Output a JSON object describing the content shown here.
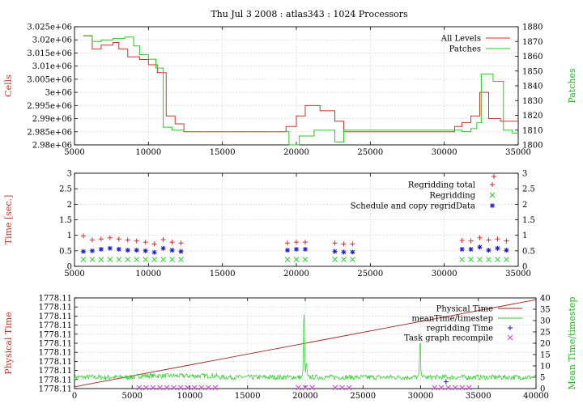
{
  "title": "Thu Jul 3 2008 : atlas343 : 1024 Processors",
  "colors": {
    "red": "#d03030",
    "green": "#22cc22",
    "blue": "#1a1acc",
    "magenta": "#cc44cc",
    "darkred": "#a02020"
  },
  "chart_data": [
    {
      "type": "line",
      "ylabel": "Cells",
      "y2label": "Patches",
      "xlim": [
        5000,
        35000
      ],
      "ylim": [
        2980000,
        3025000
      ],
      "y2lim": [
        1800,
        1880
      ],
      "xticks": [
        "5000",
        "10000",
        "15000",
        "20000",
        "25000",
        "30000",
        "35000"
      ],
      "xtick_values": [
        5000,
        10000,
        15000,
        20000,
        25000,
        30000,
        35000
      ],
      "yticks": [
        "2.98e+06",
        "2.985e+06",
        "2.99e+06",
        "2.995e+06",
        "3e+06",
        "3.005e+06",
        "3.01e+06",
        "3.015e+06",
        "3.02e+06",
        "3.025e+06"
      ],
      "ytick_values": [
        2980000,
        2985000,
        2990000,
        2995000,
        3000000,
        3005000,
        3010000,
        3015000,
        3020000,
        3025000
      ],
      "y2ticks": [
        "1800",
        "1810",
        "1820",
        "1830",
        "1840",
        "1850",
        "1860",
        "1870",
        "1880"
      ],
      "y2tick_values": [
        1800,
        1810,
        1820,
        1830,
        1840,
        1850,
        1860,
        1870,
        1880
      ],
      "legend": "top-right",
      "series": [
        {
          "name": "All Levels",
          "axis": "left",
          "color": "#d03030",
          "x": [
            5600,
            6200,
            6800,
            7600,
            8000,
            8600,
            9400,
            10000,
            10600,
            11200,
            11800,
            12400,
            19300,
            20000,
            20600,
            21600,
            22600,
            23200,
            30700,
            31200,
            31800,
            32400,
            33000,
            33800,
            34600
          ],
          "y": [
            3021500,
            3016500,
            3018000,
            3019000,
            3016500,
            3013500,
            3012500,
            3010500,
            3007500,
            2991000,
            2988000,
            2985000,
            2987000,
            2991000,
            2995000,
            2993000,
            2989000,
            2985000,
            2987000,
            2988500,
            2991000,
            3000000,
            2990000,
            2989000,
            2989000
          ]
        },
        {
          "name": "Patches",
          "axis": "right",
          "color": "#22cc22",
          "x": [
            5600,
            6200,
            6800,
            7600,
            8400,
            9000,
            9400,
            10000,
            10500,
            11000,
            11600,
            12400,
            19500,
            20200,
            21200,
            22600,
            23200,
            31200,
            31800,
            32200,
            32500,
            33300,
            34000,
            34600
          ],
          "y": [
            1874,
            1870,
            1871,
            1872,
            1873,
            1867,
            1861,
            1858,
            1852,
            1812,
            1810,
            1809,
            1800,
            1806,
            1810,
            1802,
            1810,
            1809,
            1811,
            1815,
            1848,
            1843,
            1810,
            1808
          ]
        }
      ]
    },
    {
      "type": "scatter",
      "ylabel": "Time [sec.]",
      "xlim": [
        5000,
        35000
      ],
      "ylim": [
        0,
        3
      ],
      "y2lim": [
        0,
        3
      ],
      "xticks": [
        "5000",
        "10000",
        "15000",
        "20000",
        "25000",
        "30000",
        "35000"
      ],
      "xtick_values": [
        5000,
        10000,
        15000,
        20000,
        25000,
        30000,
        35000
      ],
      "yticks": [
        "0",
        "0.5",
        "1",
        "1.5",
        "2",
        "2.5",
        "3"
      ],
      "ytick_values": [
        0,
        0.5,
        1,
        1.5,
        2,
        2.5,
        3
      ],
      "y2ticks": [
        "0",
        "0.5",
        "1",
        "1.5",
        "2",
        "2.5",
        "3"
      ],
      "y2tick_values": [
        0,
        0.5,
        1,
        1.5,
        2,
        2.5,
        3
      ],
      "legend": "top-right",
      "x": [
        5600,
        6200,
        6800,
        7400,
        8000,
        8600,
        9200,
        9800,
        10400,
        11000,
        11600,
        12200,
        19400,
        20000,
        20600,
        22600,
        23200,
        23800,
        31200,
        31800,
        32400,
        33000,
        33600,
        34200
      ],
      "series": [
        {
          "name": "Regridding total",
          "marker": "+",
          "color": "#d03030",
          "values": [
            0.98,
            0.85,
            0.88,
            0.92,
            0.88,
            0.85,
            0.82,
            0.78,
            0.72,
            0.86,
            0.78,
            0.75,
            0.75,
            0.78,
            0.78,
            0.75,
            0.72,
            0.72,
            0.83,
            0.82,
            0.92,
            0.85,
            0.88,
            0.82
          ]
        },
        {
          "name": "Regridding",
          "marker": "x",
          "color": "#22cc22",
          "values": [
            0.22,
            0.22,
            0.22,
            0.22,
            0.22,
            0.22,
            0.22,
            0.22,
            0.22,
            0.22,
            0.22,
            0.22,
            0.22,
            0.22,
            0.22,
            0.22,
            0.22,
            0.22,
            0.22,
            0.22,
            0.22,
            0.22,
            0.22,
            0.22
          ]
        },
        {
          "name": "Schedule and copy regridData",
          "marker": "*",
          "color": "#1a1acc",
          "values": [
            0.48,
            0.5,
            0.55,
            0.58,
            0.55,
            0.52,
            0.52,
            0.5,
            0.45,
            0.58,
            0.52,
            0.48,
            0.52,
            0.55,
            0.55,
            0.48,
            0.46,
            0.46,
            0.55,
            0.55,
            0.62,
            0.52,
            0.58,
            0.52
          ]
        }
      ]
    },
    {
      "type": "line",
      "ylabel": "Physical Time",
      "y2label": "Mean Time/timestep",
      "xlim": [
        0,
        40000
      ],
      "y2lim": [
        0,
        40
      ],
      "xticks": [
        "0",
        "5000",
        "10000",
        "15000",
        "20000",
        "25000",
        "30000",
        "35000",
        "40000"
      ],
      "xtick_values": [
        0,
        5000,
        10000,
        15000,
        20000,
        25000,
        30000,
        35000,
        40000
      ],
      "yticks": [
        "1778.11",
        "1778.11",
        "1778.11",
        "1778.11",
        "1778.11",
        "1778.11",
        "1778.11",
        "1778.11",
        "1778.11",
        "1778.11",
        "1778.11"
      ],
      "y2ticks": [
        "0",
        "5",
        "10",
        "15",
        "20",
        "25",
        "30",
        "35",
        "40"
      ],
      "y2tick_values": [
        0,
        5,
        10,
        15,
        20,
        25,
        30,
        35,
        40
      ],
      "legend": "top-right",
      "physical_time": {
        "name": "Physical Time",
        "color": "#a02020",
        "x": [
          0,
          40000
        ],
        "y_frac": [
          0.02,
          0.98
        ]
      },
      "mean_time": {
        "name": "meanTime/timestep",
        "color": "#22cc22",
        "baseline": 5.0,
        "spikes": [
          {
            "x": 19900,
            "peak": 34
          },
          {
            "x": 20100,
            "peak": 14
          },
          {
            "x": 29950,
            "peak": 23
          }
        ]
      },
      "regrid_time": {
        "name": "regridding Time",
        "marker": "+",
        "color": "#1a1acc",
        "x": [
          32200
        ],
        "y": [
          3
        ]
      },
      "recompile": {
        "name": "Task graph recompile",
        "marker": "x",
        "color": "#cc44cc",
        "x": [
          5600,
          6200,
          6800,
          7400,
          8000,
          8600,
          9200,
          9800,
          10400,
          11000,
          11600,
          12200,
          19400,
          20000,
          20600,
          22600,
          23200,
          23800,
          31200,
          31800,
          32400,
          33000,
          33600,
          34200
        ],
        "y": [
          0.4,
          0.4,
          0.4,
          0.4,
          0.4,
          0.4,
          0.4,
          0.4,
          0.4,
          0.4,
          0.4,
          0.4,
          0.4,
          0.4,
          0.4,
          0.4,
          0.4,
          0.4,
          0.4,
          0.4,
          0.4,
          0.4,
          0.4,
          0.4
        ]
      }
    }
  ]
}
